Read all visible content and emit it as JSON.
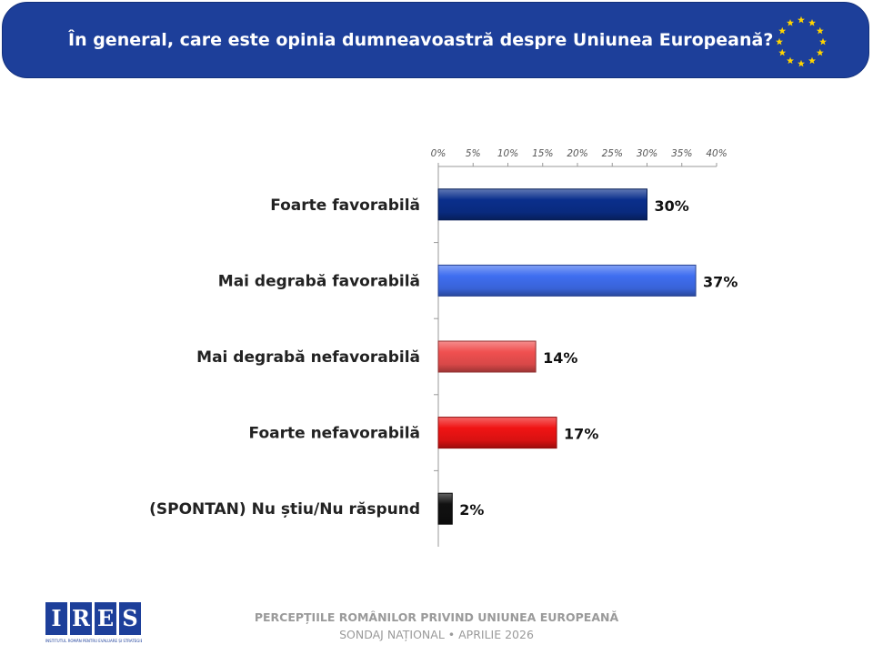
{
  "header": {
    "title": "În general, care este opinia dumneavoastră despre Uniunea Europeană?"
  },
  "chart_data": {
    "type": "bar",
    "orientation": "horizontal",
    "categories": [
      "Foarte favorabilă",
      "Mai degrabă favorabilă",
      "Mai degrabă nefavorabilă",
      "Foarte nefavorabilă",
      "(SPONTAN) Nu știu/Nu răspund"
    ],
    "values": [
      30,
      37,
      14,
      17,
      2
    ],
    "value_labels": [
      "30%",
      "37%",
      "14%",
      "17%",
      "2%"
    ],
    "xlim": [
      0,
      40
    ],
    "ticks": [
      0,
      5,
      10,
      15,
      20,
      25,
      30,
      35,
      40
    ],
    "tick_labels": [
      "0%",
      "5%",
      "10%",
      "15%",
      "20%",
      "25%",
      "30%",
      "35%",
      "40%"
    ],
    "axis_position": "top",
    "grid": false,
    "colors": [
      "#0a2f8c",
      "#3f6ef0",
      "#f05050",
      "#f01414",
      "#111111"
    ]
  },
  "footer": {
    "title": "PERCEPȚIILE ROMÂNILOR PRIVIND UNIUNEA EUROPEANĂ",
    "subtitle": "SONDAJ NAȚIONAL • APRILIE 2026"
  },
  "logo": {
    "letters": [
      "I",
      "R",
      "E",
      "S"
    ],
    "caption": "INSTITUTUL ROMÂN PENTRU EVALUARE ȘI STRATEGIE"
  }
}
